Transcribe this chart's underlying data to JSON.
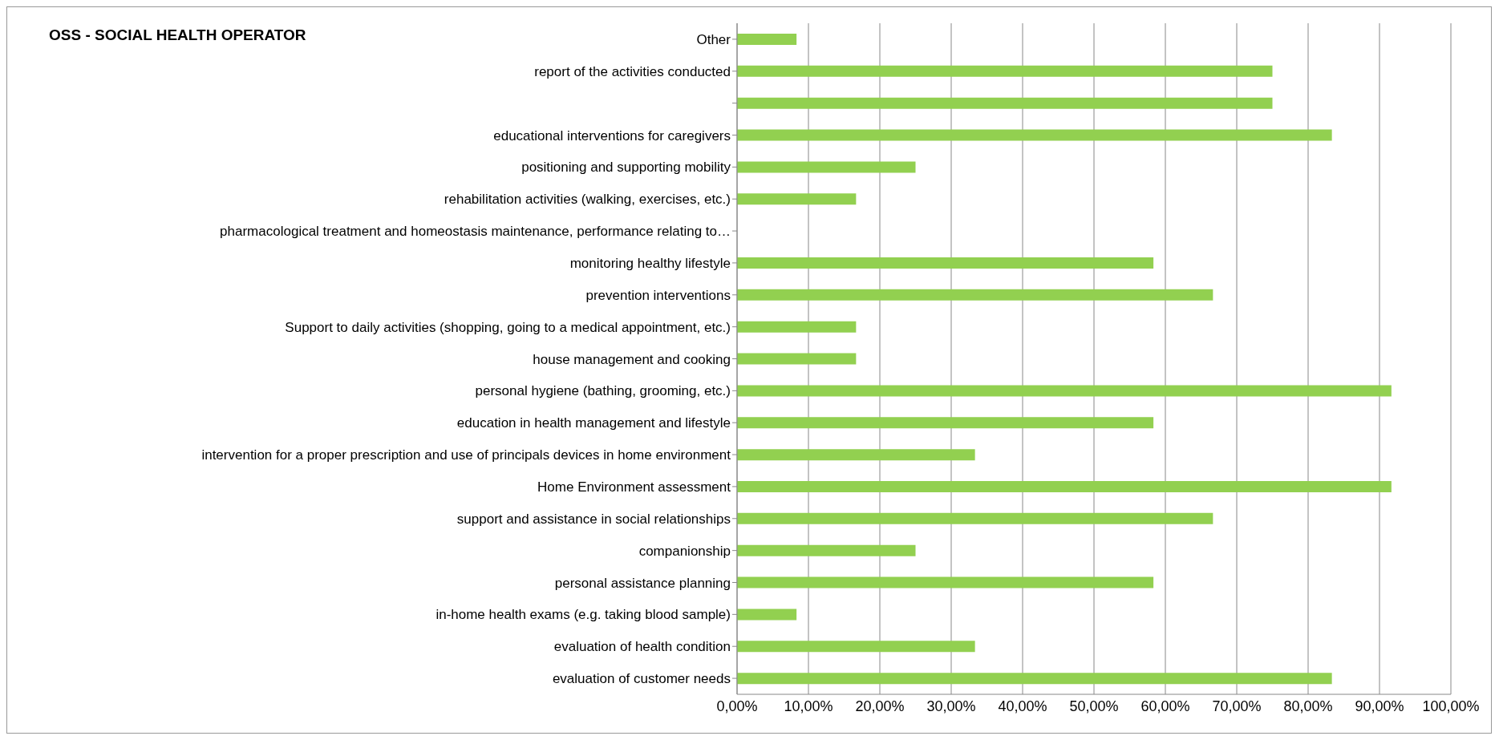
{
  "chart_data": {
    "type": "bar",
    "orientation": "horizontal",
    "title": "OSS - SOCIAL HEALTH OPERATOR",
    "categories": [
      "Other",
      "report of the activities conducted",
      null,
      "educational interventions for caregivers",
      "positioning and supporting mobility",
      "rehabilitation activities (walking, exercises, etc.)",
      "pharmacological treatment and homeostasis maintenance, performance relating to…",
      "monitoring healthy lifestyle",
      "prevention interventions",
      "Support to daily activities (shopping, going to a medical appointment, etc.)",
      "house management and cooking",
      "personal  hygiene (bathing, grooming, etc.)",
      "education in health management and lifestyle",
      "intervention for a proper prescription and use of principals devices in home environment",
      "Home Environment assessment",
      "support and assistance in social relationships",
      "companionship",
      "personal assistance planning",
      "in-home health exams (e.g. taking blood sample)",
      "evaluation of health condition",
      "evaluation of customer needs"
    ],
    "values": [
      8.33,
      75,
      75,
      83.33,
      25,
      16.67,
      0,
      58.33,
      66.67,
      16.67,
      16.67,
      91.67,
      58.33,
      33.33,
      91.67,
      66.67,
      25,
      58.33,
      8.33,
      33.33,
      83.33
    ],
    "color": "#92d050",
    "xlim": [
      0,
      100
    ],
    "xticks": [
      {
        "value": 0,
        "label": "0,00%"
      },
      {
        "value": 10,
        "label": "10,00%"
      },
      {
        "value": 20,
        "label": "20,00%"
      },
      {
        "value": 30,
        "label": "30,00%"
      },
      {
        "value": 40,
        "label": "40,00%"
      },
      {
        "value": 50,
        "label": "50,00%"
      },
      {
        "value": 60,
        "label": "60,00%"
      },
      {
        "value": 70,
        "label": "70,00%"
      },
      {
        "value": 80,
        "label": "80,00%"
      },
      {
        "value": 90,
        "label": "90,00%"
      },
      {
        "value": 100,
        "label": "100,00%"
      }
    ],
    "grid": "x",
    "legend": false
  }
}
